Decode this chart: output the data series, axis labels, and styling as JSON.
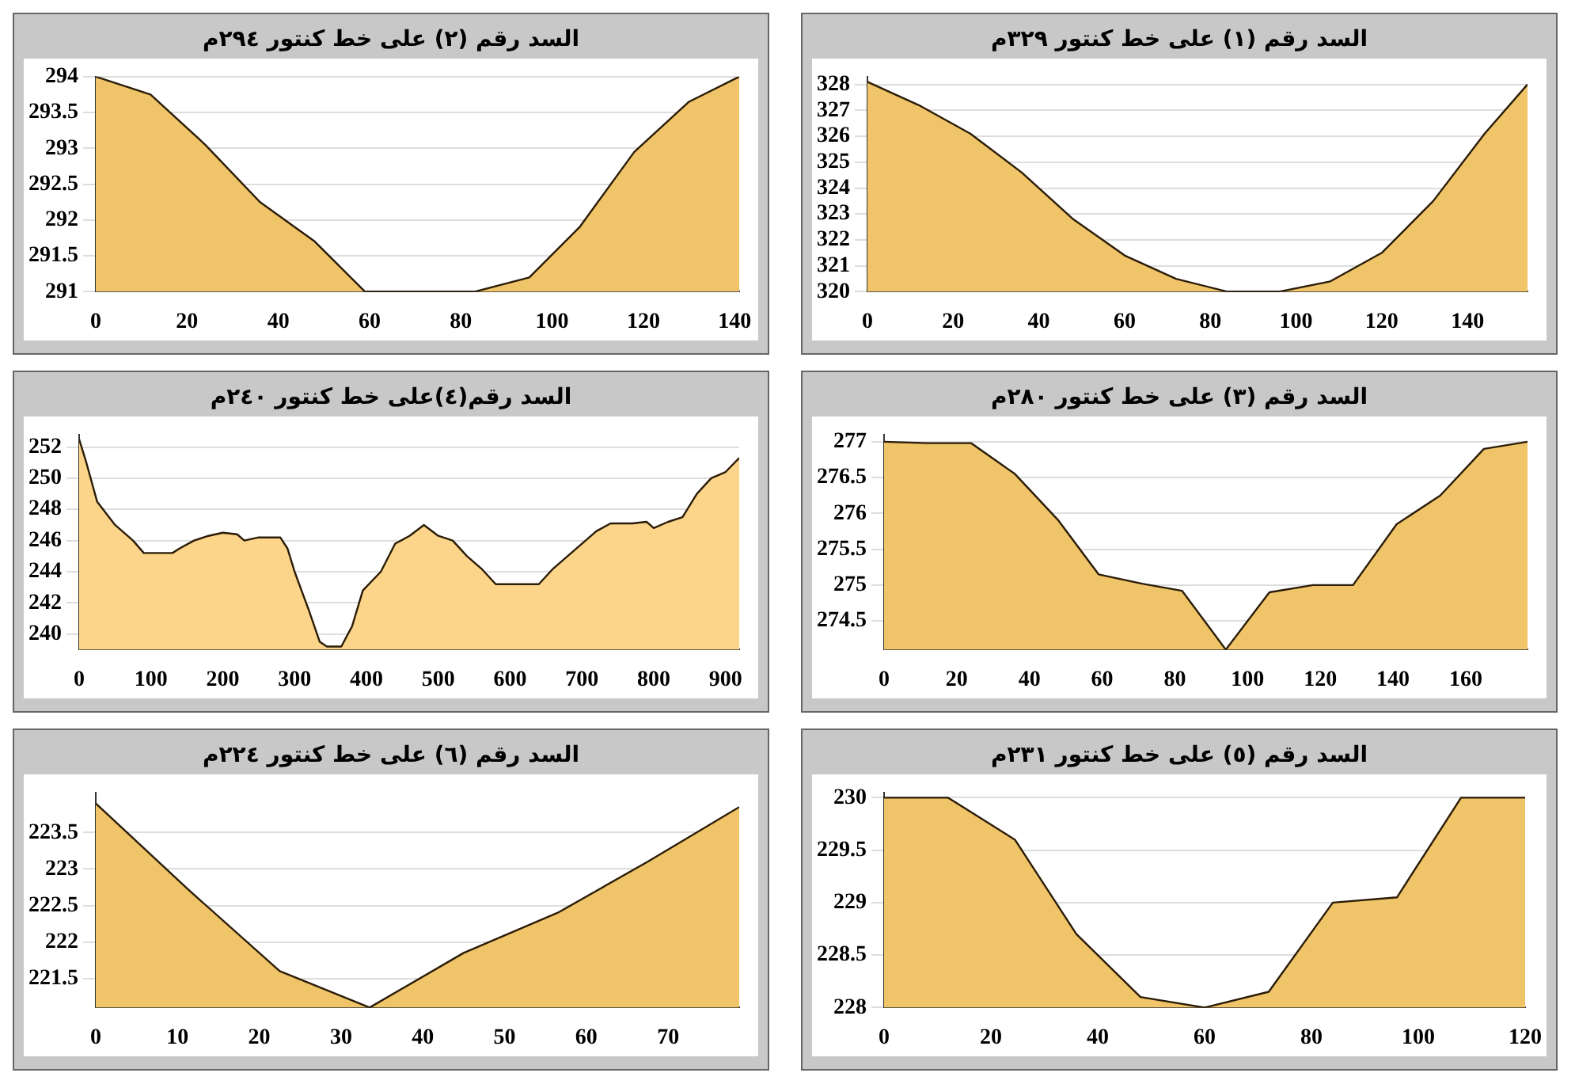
{
  "chart_data": [
    {
      "type": "area",
      "title": "السد رقم (٢) على خط كنتور  ٢٩٤م",
      "x": [
        0,
        12,
        24,
        36,
        48,
        59,
        71,
        83,
        95,
        106,
        118,
        130,
        141
      ],
      "values": [
        294,
        293.75,
        293.05,
        292.25,
        291.7,
        291,
        291,
        291,
        291.2,
        291.9,
        292.95,
        293.65,
        294
      ],
      "color": "#f0c468",
      "xlim": [
        0,
        141
      ],
      "ylim": [
        291,
        294
      ],
      "xticks": [
        0,
        20,
        40,
        60,
        80,
        100,
        120,
        140
      ],
      "yticks": [
        291,
        291.5,
        292,
        292.5,
        293,
        293.5,
        294
      ],
      "grid": "y"
    },
    {
      "type": "area",
      "title": "السد رقم (١) على خط كنتور  ٣٢٩م",
      "x": [
        0,
        12,
        24,
        36,
        48,
        60,
        72,
        84,
        96,
        108,
        120,
        132,
        144,
        154
      ],
      "values": [
        328.1,
        327.2,
        326.1,
        324.6,
        322.8,
        321.4,
        320.5,
        320,
        320,
        320.4,
        321.5,
        323.5,
        326.1,
        328
      ],
      "color": "#f0c468",
      "xlim": [
        0,
        154
      ],
      "ylim": [
        320,
        328.3
      ],
      "xticks": [
        0,
        20,
        40,
        60,
        80,
        100,
        120,
        140
      ],
      "yticks": [
        320,
        321,
        322,
        323,
        324,
        325,
        326,
        327,
        328
      ],
      "grid": "y"
    },
    {
      "type": "area",
      "title": "السد رقم(٤)على خط كنتور  ٢٤٠م",
      "x": [
        0,
        10,
        25,
        50,
        75,
        90,
        100,
        130,
        140,
        160,
        180,
        200,
        220,
        230,
        250,
        280,
        290,
        300,
        320,
        335,
        345,
        365,
        380,
        395,
        420,
        440,
        460,
        480,
        500,
        520,
        540,
        560,
        580,
        600,
        640,
        660,
        680,
        700,
        720,
        740,
        770,
        790,
        800,
        820,
        840,
        860,
        880,
        900,
        919
      ],
      "values": [
        252.5,
        251,
        248.5,
        247,
        246,
        245.2,
        245.2,
        245.2,
        245.5,
        246,
        246.3,
        246.5,
        246.4,
        246,
        246.2,
        246.2,
        245.5,
        244,
        241.5,
        239.5,
        239.2,
        239.2,
        240.5,
        242.8,
        244,
        245.8,
        246.3,
        247,
        246.3,
        246,
        245,
        244.2,
        243.2,
        243.2,
        243.2,
        244.2,
        245,
        245.8,
        246.6,
        247.1,
        247.1,
        247.2,
        246.8,
        247.2,
        247.5,
        249,
        250,
        250.4,
        251.3
      ],
      "color": "#fdd58a",
      "xlim": [
        0,
        919
      ],
      "ylim": [
        239,
        252.8
      ],
      "xticks": [
        0,
        100,
        200,
        300,
        400,
        500,
        600,
        700,
        800,
        900
      ],
      "yticks": [
        240,
        242,
        244,
        246,
        248,
        250,
        252
      ],
      "grid": "y"
    },
    {
      "type": "area",
      "title": "السد رقم (٣) على خط كنتور  ٢٨٠م",
      "x": [
        0,
        12,
        24,
        36,
        48,
        59,
        71,
        82,
        94,
        106,
        118,
        129,
        141,
        153,
        165,
        177
      ],
      "values": [
        277,
        276.98,
        276.98,
        276.55,
        275.9,
        275.15,
        275.02,
        274.92,
        274.1,
        274.9,
        275,
        275,
        275.85,
        276.25,
        276.9,
        277
      ],
      "color": "#f0c468",
      "xlim": [
        0,
        177
      ],
      "ylim": [
        274.1,
        277.1
      ],
      "xticks": [
        0,
        20,
        40,
        60,
        80,
        100,
        120,
        140,
        160
      ],
      "yticks": [
        274.5,
        275,
        275.5,
        276,
        276.5,
        277
      ],
      "grid": "y"
    },
    {
      "type": "area",
      "title": "السد رقم (٦) على خط كنتور  ٢٢٤م",
      "x": [
        0,
        11.5,
        22.5,
        33.5,
        45,
        56.5,
        67.5,
        78.7
      ],
      "values": [
        223.9,
        222.7,
        221.6,
        221.1,
        221.85,
        222.4,
        223.1,
        223.85
      ],
      "color": "#f0c468",
      "xlim": [
        0,
        78.7
      ],
      "ylim": [
        221.1,
        224.05
      ],
      "xticks": [
        0,
        10,
        20,
        30,
        40,
        50,
        60,
        70
      ],
      "yticks": [
        221.5,
        222,
        222.5,
        223,
        223.5
      ],
      "grid": "y"
    },
    {
      "type": "area",
      "title": "السد رقم (٥) على خط كنتور  ٢٣١م",
      "x": [
        0,
        12,
        24.5,
        36,
        48,
        60,
        72,
        84,
        96,
        108,
        120
      ],
      "values": [
        230,
        230,
        229.6,
        228.7,
        228.1,
        228,
        228.15,
        229,
        229.05,
        230,
        230
      ],
      "color": "#f0c468",
      "xlim": [
        0,
        120
      ],
      "ylim": [
        228,
        230.05
      ],
      "xticks": [
        0,
        20,
        40,
        60,
        80,
        100,
        120
      ],
      "yticks": [
        228,
        228.5,
        229,
        229.5,
        230
      ],
      "grid": "y"
    }
  ]
}
